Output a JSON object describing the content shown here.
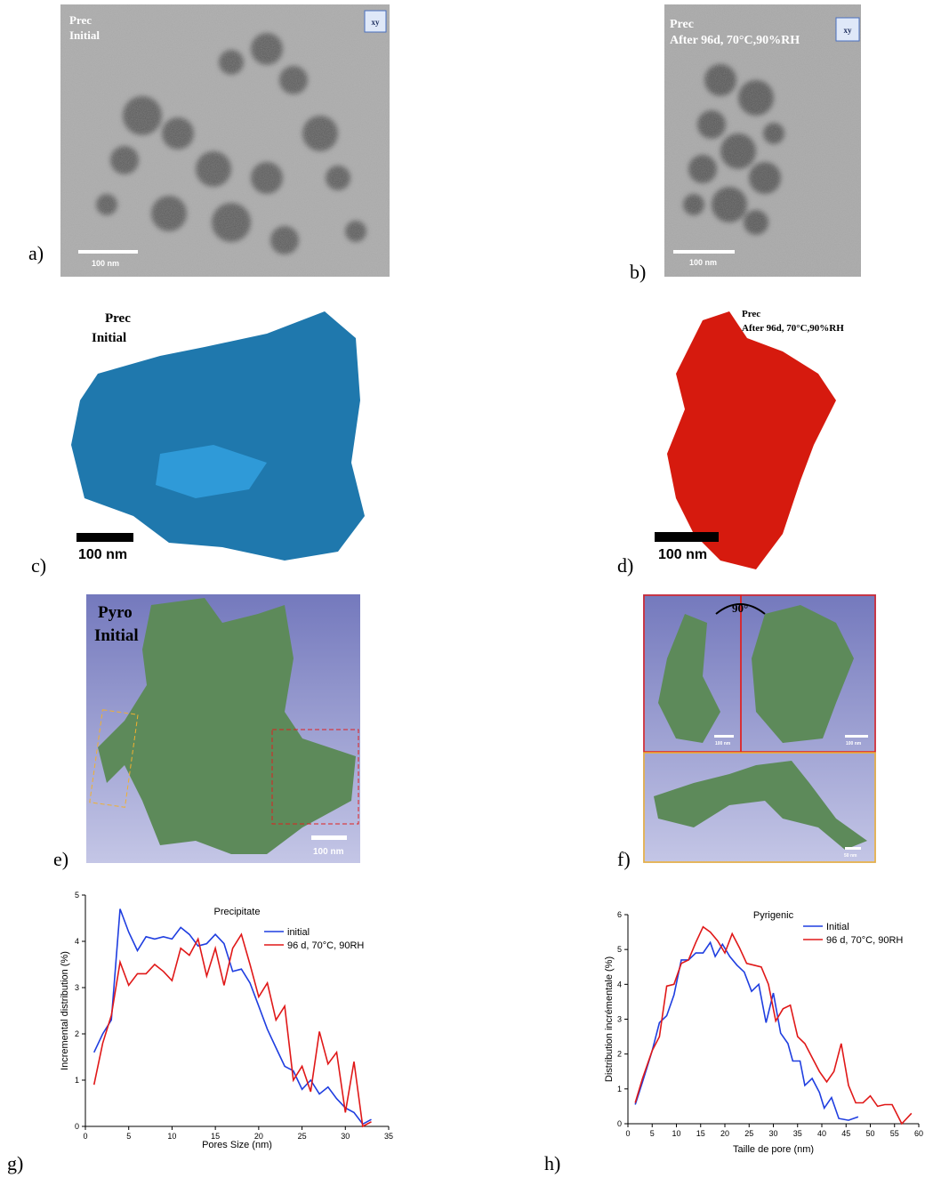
{
  "panels": [
    {
      "label": "a)",
      "texts": [
        "Prec",
        "Initial",
        "xy",
        "100 nm"
      ]
    },
    {
      "label": "b)",
      "texts": [
        "Prec",
        "After 96d, 70°C,90%RH",
        "xy",
        "100 nm"
      ]
    },
    {
      "label": "c)",
      "texts": [
        "Prec",
        "Initial",
        "100 nm"
      ]
    },
    {
      "label": "d)",
      "texts": [
        "Prec",
        "After 96d, 70°C,90%RH",
        "100 nm"
      ]
    },
    {
      "label": "e)",
      "texts": [
        "Pyro",
        "Initial",
        "100 nm"
      ]
    },
    {
      "label": "f)",
      "texts": [
        "90°",
        "100 nm",
        "100 nm",
        "50 nm"
      ]
    },
    {
      "label": "g)"
    },
    {
      "label": "h)"
    }
  ],
  "chart_data": [
    {
      "type": "line",
      "title": "Precipitate",
      "x_label": "Pores Size (nm)",
      "y_label": "Incremental distribution (%)",
      "xlim": [
        0,
        35
      ],
      "xticks": [
        0,
        5,
        10,
        15,
        20,
        25,
        30,
        35
      ],
      "ylim": [
        0,
        5
      ],
      "yticks": [
        0,
        1,
        2,
        3,
        4,
        5
      ],
      "legend": "upper right",
      "series": [
        {
          "name": "initial",
          "color": "#1f3ee0",
          "x": [
            1,
            2,
            3,
            4,
            5,
            6,
            7,
            8,
            9,
            10,
            11,
            12,
            13,
            14,
            15,
            16,
            17,
            18,
            19,
            20,
            21,
            22,
            23,
            24,
            25,
            26,
            27,
            28,
            29,
            30,
            31,
            32,
            33
          ],
          "values": [
            1.6,
            2.0,
            2.3,
            4.7,
            4.2,
            3.8,
            4.1,
            4.05,
            4.1,
            4.05,
            4.3,
            4.15,
            3.9,
            3.95,
            4.15,
            3.95,
            3.35,
            3.4,
            3.1,
            2.6,
            2.1,
            1.7,
            1.3,
            1.2,
            0.8,
            1.0,
            0.7,
            0.85,
            0.6,
            0.4,
            0.3,
            0.05,
            0.15
          ]
        },
        {
          "name": "96 d, 70°C, 90RH",
          "color": "#e01818",
          "x": [
            1,
            2,
            3,
            4,
            5,
            6,
            7,
            8,
            9,
            10,
            11,
            12,
            13,
            14,
            15,
            16,
            17,
            18,
            19,
            20,
            21,
            22,
            23,
            24,
            25,
            26,
            27,
            28,
            29,
            30,
            31,
            32,
            33
          ],
          "values": [
            0.9,
            1.8,
            2.4,
            3.55,
            3.05,
            3.3,
            3.3,
            3.5,
            3.35,
            3.15,
            3.85,
            3.7,
            4.05,
            3.25,
            3.85,
            3.05,
            3.85,
            4.15,
            3.5,
            2.8,
            3.1,
            2.3,
            2.6,
            1.0,
            1.3,
            0.75,
            2.05,
            1.35,
            1.6,
            0.3,
            1.4,
            0.0,
            0.1
          ]
        }
      ]
    },
    {
      "type": "line",
      "title": "Pyrigenic",
      "x_label": "Taille de pore (nm)",
      "y_label": "Distribution incrémentale (%)",
      "xlim": [
        0,
        60
      ],
      "xticks": [
        0,
        5,
        10,
        15,
        20,
        25,
        30,
        35,
        40,
        45,
        50,
        55,
        60
      ],
      "ylim": [
        0,
        6
      ],
      "yticks": [
        0,
        1,
        2,
        3,
        4,
        5,
        6
      ],
      "legend": "upper right",
      "series": [
        {
          "name": "Initial",
          "color": "#1f3ee0",
          "x": [
            1.5,
            3,
            5,
            6.5,
            8,
            9.5,
            11,
            12.5,
            14,
            15.5,
            17,
            18,
            19.5,
            21,
            22.5,
            24,
            25.5,
            27,
            28.5,
            30,
            31.5,
            33,
            34,
            35.5,
            36.5,
            38,
            39.5,
            40.5,
            42,
            43.5,
            45.5,
            47.5
          ],
          "values": [
            0.55,
            1.2,
            2.1,
            2.9,
            3.1,
            3.7,
            4.7,
            4.7,
            4.9,
            4.9,
            5.2,
            4.8,
            5.15,
            4.8,
            4.55,
            4.35,
            3.8,
            4.0,
            2.9,
            3.75,
            2.6,
            2.3,
            1.8,
            1.8,
            1.1,
            1.3,
            0.9,
            0.45,
            0.75,
            0.15,
            0.1,
            0.2
          ]
        },
        {
          "name": "96 d, 70°C, 90RH",
          "color": "#e01818",
          "x": [
            1.5,
            3,
            5,
            6.5,
            8,
            9.5,
            11,
            12.5,
            14,
            15.5,
            17,
            18.5,
            20,
            21.5,
            23,
            24.5,
            26,
            27.5,
            29,
            30.5,
            32,
            33.5,
            35,
            36.5,
            38,
            39.5,
            41,
            42.5,
            44,
            45.5,
            47,
            48.5,
            50,
            51.5,
            53,
            54.5,
            56.5,
            58.5
          ],
          "values": [
            0.6,
            1.3,
            2.1,
            2.5,
            3.95,
            4.0,
            4.6,
            4.7,
            5.2,
            5.65,
            5.5,
            5.25,
            4.9,
            5.45,
            5.05,
            4.6,
            4.55,
            4.5,
            4.0,
            2.95,
            3.3,
            3.4,
            2.5,
            2.3,
            1.9,
            1.5,
            1.2,
            1.5,
            2.3,
            1.1,
            0.6,
            0.6,
            0.8,
            0.5,
            0.55,
            0.55,
            0.0,
            0.3
          ]
        }
      ]
    }
  ]
}
